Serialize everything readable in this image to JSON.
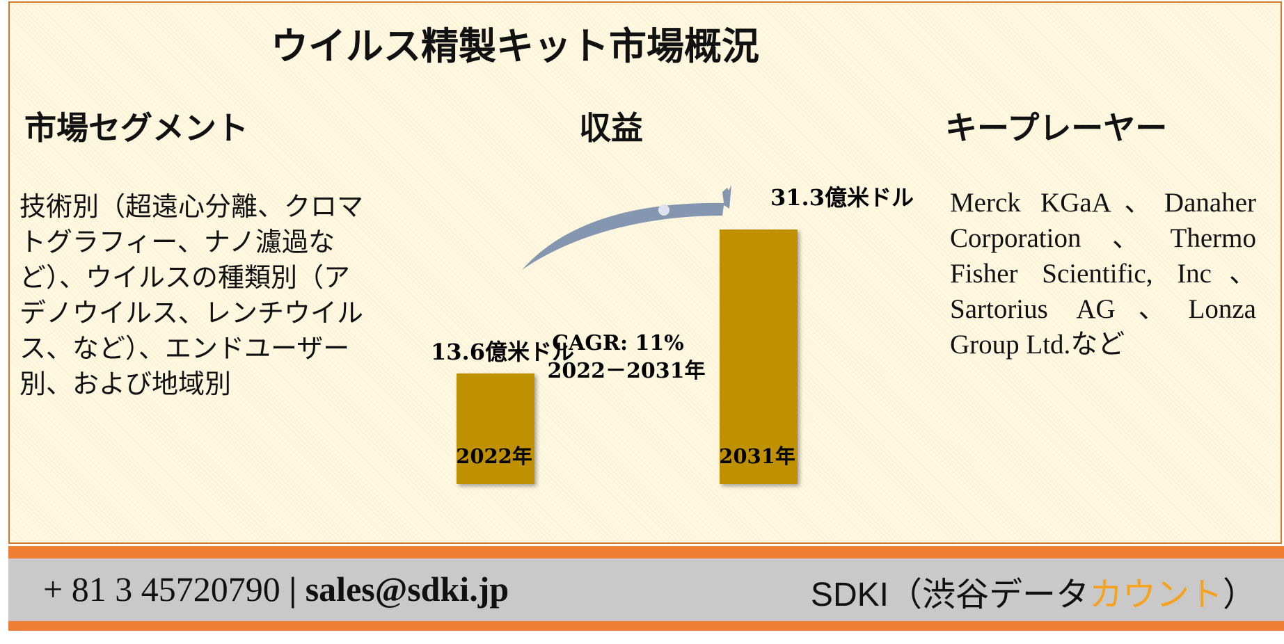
{
  "title": "ウイルス精製キット市場概況",
  "sections": {
    "segment": {
      "heading": "市場セグメント",
      "text": "技術別（超遠心分離、クロマトグラフィー、ナノ濾過など）、ウイルスの種類別（アデノウイルス、レンチウイルス、など）、エンドユーザー別、および地域別"
    },
    "revenue": {
      "heading": "収益"
    },
    "players": {
      "heading": "キープレーヤー",
      "text": "Merck KGaA、Danaher Corporation、Thermo Fisher Scientific, Inc、Sartorius AG、Lonza Group Ltd.など"
    }
  },
  "chart_data": {
    "type": "bar",
    "categories": [
      "2022年",
      "2031年"
    ],
    "values": [
      13.6,
      31.3
    ],
    "value_labels": [
      "13.6億米ドル",
      "31.3億米ドル"
    ],
    "unit": "億米ドル",
    "annotation": {
      "cagr": "CAGR: 11%",
      "period": "2022－2031年"
    },
    "bar_color": "#bf9000",
    "arrow_color": "#8496b0"
  },
  "footer": {
    "phone": "+ 81 3 45720790",
    "separator": "|",
    "email": "sales@sdki.jp",
    "brand_main": "SDKI（渋谷データ",
    "brand_accent": "カウント",
    "brand_close": "）"
  }
}
